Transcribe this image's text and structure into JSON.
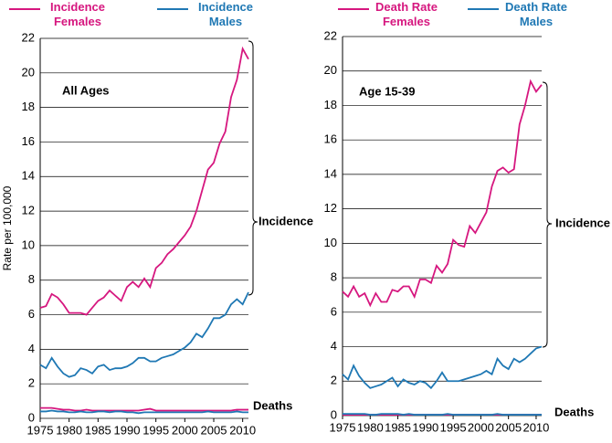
{
  "chart_data": [
    {
      "type": "line",
      "y_label": "Rate per 100,000",
      "annotations": [
        "All Ages",
        "Incidence",
        "Deaths"
      ],
      "x": [
        1975,
        1976,
        1977,
        1978,
        1979,
        1980,
        1981,
        1982,
        1983,
        1984,
        1985,
        1986,
        1987,
        1988,
        1989,
        1990,
        1991,
        1992,
        1993,
        1994,
        1995,
        1996,
        1997,
        1998,
        1999,
        2000,
        2001,
        2002,
        2003,
        2004,
        2005,
        2006,
        2007,
        2008,
        2009,
        2010,
        2011
      ],
      "xlim": [
        1975,
        2011
      ],
      "xticks": [
        1975,
        1980,
        1985,
        1990,
        1995,
        2000,
        2005,
        2010
      ],
      "ylim": [
        0,
        22
      ],
      "yticks": [
        0,
        2,
        4,
        6,
        8,
        10,
        12,
        14,
        16,
        18,
        20,
        22
      ],
      "grid": true,
      "series": [
        {
          "name": "Incidence Females",
          "color": "#d6177f",
          "values": [
            6.4,
            6.5,
            7.2,
            7.0,
            6.6,
            6.1,
            6.1,
            6.1,
            6.0,
            6.4,
            6.8,
            7.0,
            7.4,
            7.1,
            6.8,
            7.6,
            7.9,
            7.6,
            8.1,
            7.6,
            8.7,
            9.0,
            9.5,
            9.8,
            10.2,
            10.6,
            11.1,
            12.0,
            13.2,
            14.4,
            14.8,
            15.9,
            16.6,
            18.6,
            19.6,
            21.4,
            20.8
          ]
        },
        {
          "name": "Incidence Males",
          "color": "#1f78b4",
          "values": [
            3.1,
            2.9,
            3.5,
            3.0,
            2.6,
            2.4,
            2.5,
            2.9,
            2.8,
            2.6,
            3.0,
            3.1,
            2.8,
            2.9,
            2.9,
            3.0,
            3.2,
            3.5,
            3.5,
            3.3,
            3.3,
            3.5,
            3.6,
            3.7,
            3.9,
            4.1,
            4.4,
            4.9,
            4.7,
            5.2,
            5.8,
            5.8,
            6.0,
            6.6,
            6.9,
            6.6,
            7.3
          ]
        },
        {
          "color": "#d6177f",
          "values": [
            0.6,
            0.6,
            0.6,
            0.55,
            0.5,
            0.5,
            0.45,
            0.45,
            0.5,
            0.45,
            0.45,
            0.45,
            0.45,
            0.45,
            0.45,
            0.45,
            0.45,
            0.45,
            0.5,
            0.55,
            0.45,
            0.45,
            0.45,
            0.45,
            0.45,
            0.45,
            0.45,
            0.45,
            0.45,
            0.45,
            0.45,
            0.45,
            0.45,
            0.45,
            0.5,
            0.5,
            0.5
          ]
        },
        {
          "color": "#1f78b4",
          "values": [
            0.4,
            0.4,
            0.45,
            0.4,
            0.4,
            0.35,
            0.35,
            0.4,
            0.35,
            0.35,
            0.4,
            0.4,
            0.35,
            0.4,
            0.4,
            0.35,
            0.35,
            0.3,
            0.35,
            0.35,
            0.35,
            0.35,
            0.35,
            0.35,
            0.35,
            0.35,
            0.35,
            0.35,
            0.35,
            0.4,
            0.35,
            0.35,
            0.35,
            0.35,
            0.4,
            0.35,
            0.35
          ]
        }
      ]
    },
    {
      "type": "line",
      "annotations": [
        "Age 15-39",
        "Incidence",
        "Deaths"
      ],
      "x": [
        1975,
        1976,
        1977,
        1978,
        1979,
        1980,
        1981,
        1982,
        1983,
        1984,
        1985,
        1986,
        1987,
        1988,
        1989,
        1990,
        1991,
        1992,
        1993,
        1994,
        1995,
        1996,
        1997,
        1998,
        1999,
        2000,
        2001,
        2002,
        2003,
        2004,
        2005,
        2006,
        2007,
        2008,
        2009,
        2010,
        2011
      ],
      "xlim": [
        1975,
        2011
      ],
      "xticks": [
        1975,
        1980,
        1985,
        1990,
        1995,
        2000,
        2005,
        2010
      ],
      "ylim": [
        0,
        22
      ],
      "yticks": [
        0,
        2,
        4,
        6,
        8,
        10,
        12,
        14,
        16,
        18,
        20,
        22
      ],
      "grid": true,
      "series": [
        {
          "name": "Death Rate Females",
          "color": "#d6177f",
          "values": [
            7.2,
            6.9,
            7.5,
            6.9,
            7.1,
            6.4,
            7.1,
            6.6,
            6.6,
            7.3,
            7.2,
            7.5,
            7.5,
            6.9,
            7.9,
            7.9,
            7.7,
            8.7,
            8.3,
            8.8,
            10.2,
            9.9,
            9.8,
            11.0,
            10.6,
            11.2,
            11.8,
            13.3,
            14.2,
            14.4,
            14.1,
            14.3,
            16.9,
            18.0,
            19.4,
            18.8,
            19.2
          ]
        },
        {
          "name": "Death Rate Males",
          "color": "#1f78b4",
          "values": [
            2.4,
            2.1,
            2.9,
            2.3,
            1.9,
            1.6,
            1.7,
            1.8,
            2.0,
            2.2,
            1.7,
            2.1,
            1.9,
            1.8,
            2.0,
            1.9,
            1.6,
            2.0,
            2.5,
            2.0,
            2.0,
            2.0,
            2.1,
            2.2,
            2.3,
            2.4,
            2.6,
            2.4,
            3.3,
            2.9,
            2.7,
            3.3,
            3.1,
            3.3,
            3.6,
            3.9,
            4.0
          ]
        },
        {
          "color": "#d6177f",
          "values": [
            0.05,
            0.05,
            0.05,
            0.05,
            0.05,
            0.05,
            0.05,
            0.05,
            0.05,
            0.05,
            0.05,
            0.05,
            0.05,
            0.05,
            0.05,
            0.05,
            0.05,
            0.05,
            0.05,
            0.05,
            0.05,
            0.05,
            0.05,
            0.05,
            0.05,
            0.05,
            0.05,
            0.05,
            0.05,
            0.05,
            0.05,
            0.05,
            0.05,
            0.05,
            0.05,
            0.05,
            0.05
          ]
        },
        {
          "color": "#1f78b4",
          "values": [
            0.1,
            0.1,
            0.1,
            0.1,
            0.1,
            0.05,
            0.05,
            0.1,
            0.1,
            0.1,
            0.1,
            0.05,
            0.1,
            0.05,
            0.05,
            0.05,
            0.05,
            0.05,
            0.05,
            0.1,
            0.05,
            0.05,
            0.05,
            0.05,
            0.05,
            0.05,
            0.05,
            0.05,
            0.1,
            0.05,
            0.05,
            0.05,
            0.05,
            0.05,
            0.05,
            0.05,
            0.05
          ]
        }
      ]
    }
  ]
}
